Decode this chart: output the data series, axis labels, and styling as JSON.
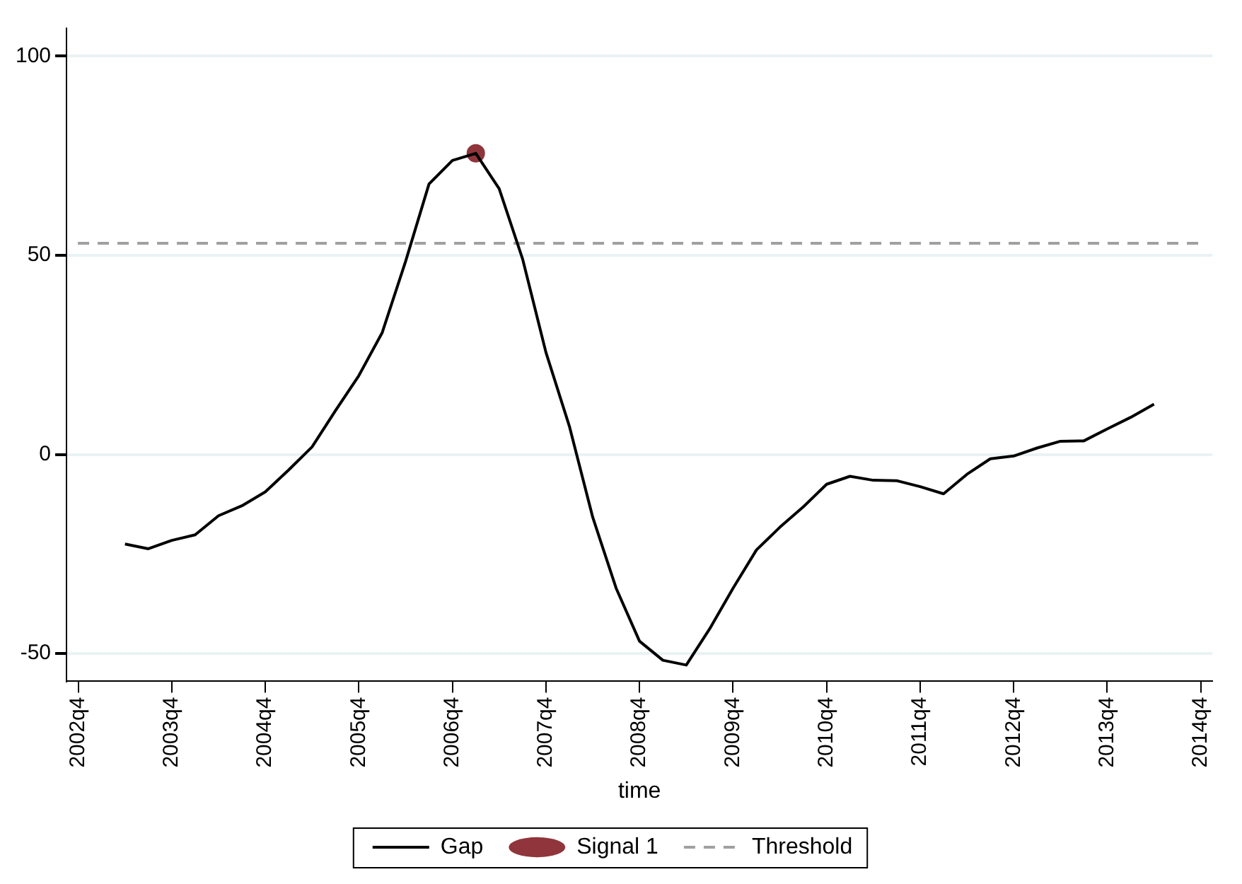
{
  "chart_data": {
    "type": "line",
    "xlabel": "time",
    "categories": [
      "2002q4",
      null,
      null,
      null,
      "2003q4",
      null,
      null,
      null,
      "2004q4",
      null,
      null,
      null,
      "2005q4",
      null,
      null,
      null,
      "2006q4",
      null,
      null,
      null,
      "2007q4",
      null,
      null,
      null,
      "2008q4",
      null,
      null,
      null,
      "2009q4",
      null,
      null,
      null,
      "2010q4",
      null,
      null,
      null,
      "2011q4",
      null,
      null,
      null,
      "2012q4",
      null,
      null,
      null,
      "2013q4",
      null,
      null,
      null,
      "2014q4"
    ],
    "series": [
      {
        "name": "Gap",
        "color": "#000000",
        "values": [
          null,
          null,
          -22.5,
          -23.7,
          -21.6,
          -20.2,
          -15.4,
          -12.9,
          -9.4,
          -3.9,
          1.9,
          11.0,
          19.8,
          30.6,
          48.5,
          67.9,
          73.8,
          75.6,
          66.7,
          49.1,
          25.6,
          7.1,
          -15.8,
          -33.6,
          -46.9,
          -51.7,
          -52.9,
          -43.8,
          -33.6,
          -24.0,
          -18.3,
          -13.2,
          -7.5,
          -5.5,
          -6.5,
          -6.6,
          -8.1,
          -9.9,
          -5.0,
          -1.1,
          -0.4,
          1.6,
          3.3,
          3.4,
          6.4,
          9.3,
          12.6,
          null,
          null
        ]
      },
      {
        "name": "Signal 1",
        "type": "scatter",
        "color": "#90353b",
        "values": [
          null,
          null,
          null,
          null,
          null,
          null,
          null,
          null,
          null,
          null,
          null,
          null,
          null,
          null,
          null,
          null,
          null,
          75.6,
          null,
          null,
          null,
          null,
          null,
          null,
          null,
          null,
          null,
          null,
          null,
          null,
          null,
          null,
          null,
          null,
          null,
          null,
          null,
          null,
          null,
          null,
          null,
          null,
          null,
          null,
          null,
          null,
          null,
          null,
          null
        ]
      }
    ],
    "ref_lines": [
      {
        "axis": "y",
        "value": 53,
        "label": "Threshold",
        "color": "#a0a0a0",
        "line_style": "dashed"
      }
    ],
    "ylim": [
      -57,
      107
    ],
    "yticks": [
      -50,
      0,
      50,
      100
    ],
    "grid": "y",
    "legend": "bottom"
  }
}
